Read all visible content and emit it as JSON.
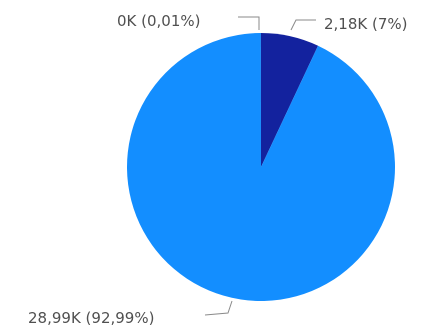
{
  "chart_data": {
    "type": "pie",
    "title": "",
    "slices": [
      {
        "label": "2,18K (7%)",
        "value": 2.18,
        "percent": 7.0,
        "color": "#13229e"
      },
      {
        "label": "28,99K (92,99%)",
        "value": 28.99,
        "percent": 92.99,
        "color": "#138eff"
      },
      {
        "label": "0K (0,01%)",
        "value": 0.0,
        "percent": 0.01,
        "color": "#0b1a6e"
      }
    ],
    "legend": "none"
  }
}
